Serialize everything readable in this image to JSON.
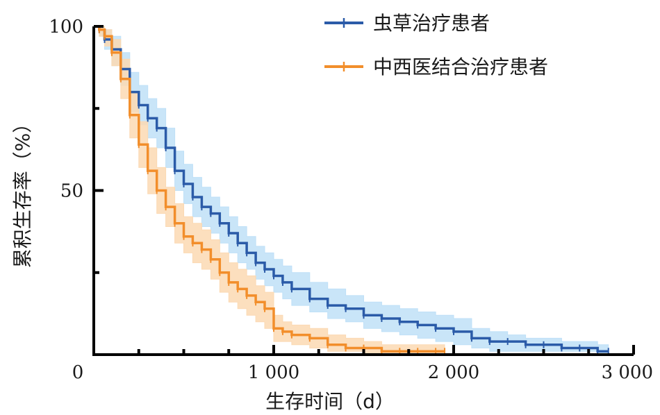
{
  "chart_data": {
    "type": "line",
    "subtype": "kaplan-meier survival curve with confidence bands",
    "xlabel": "生存时间（d）",
    "ylabel": "累积生存率（%）",
    "xlim": [
      0,
      3000
    ],
    "ylim": [
      0,
      100
    ],
    "x_ticks": [
      {
        "value": 0,
        "label": "0"
      },
      {
        "value": 1000,
        "label": "1 000"
      },
      {
        "value": 2000,
        "label": "2 000"
      },
      {
        "value": 3000,
        "label": "3 000"
      }
    ],
    "y_ticks": [
      {
        "value": 50,
        "label": "50"
      },
      {
        "value": 100,
        "label": "100"
      }
    ],
    "x_minor_ticks": [
      250,
      500,
      750,
      1250,
      1500,
      1750,
      2250,
      2500,
      2750
    ],
    "y_minor_ticks": [
      25,
      75
    ],
    "legend_position": "top-right",
    "series": [
      {
        "name": "虫草治疗患者",
        "color": "#2b5ba8",
        "band_color": "#bfe0f7",
        "x": [
          0,
          30,
          60,
          100,
          150,
          200,
          250,
          300,
          350,
          400,
          450,
          500,
          550,
          600,
          650,
          700,
          750,
          800,
          850,
          900,
          950,
          1000,
          1050,
          1100,
          1200,
          1300,
          1400,
          1500,
          1600,
          1700,
          1800,
          1900,
          2000,
          2100,
          2200,
          2300,
          2400,
          2500,
          2600,
          2700,
          2800,
          2860
        ],
        "y": [
          100,
          99,
          96,
          93,
          87,
          80,
          76,
          72,
          69,
          63,
          56,
          52,
          48,
          45,
          43,
          40,
          37,
          34,
          31,
          28,
          26,
          24,
          22,
          20,
          17,
          15,
          14,
          12,
          11,
          10,
          9,
          8,
          7,
          5,
          4,
          4,
          3,
          3,
          2,
          2,
          1,
          1
        ],
        "ci_upper": [
          100,
          100,
          99,
          97,
          92,
          86,
          82,
          78,
          75,
          69,
          62,
          58,
          54,
          51,
          48,
          45,
          42,
          39,
          36,
          33,
          31,
          29,
          27,
          25,
          22,
          20,
          18,
          16,
          15,
          14,
          13,
          12,
          11,
          8,
          7,
          6,
          5,
          5,
          4,
          4,
          3,
          3
        ],
        "ci_lower": [
          100,
          97,
          93,
          88,
          82,
          74,
          70,
          66,
          63,
          57,
          50,
          46,
          42,
          39,
          37,
          34,
          31,
          28,
          26,
          23,
          21,
          19,
          17,
          15,
          13,
          11,
          10,
          8,
          7,
          6,
          5,
          4,
          3,
          2,
          1,
          1,
          1,
          1,
          1,
          1,
          0,
          0
        ]
      },
      {
        "name": "中西医结合治疗患者",
        "color": "#f28e2b",
        "band_color": "#fbd9b3",
        "x": [
          0,
          30,
          60,
          100,
          150,
          200,
          250,
          300,
          350,
          400,
          450,
          500,
          550,
          600,
          650,
          700,
          750,
          800,
          850,
          900,
          950,
          1000,
          1050,
          1100,
          1200,
          1300,
          1400,
          1500,
          1600,
          1700,
          1800,
          1900,
          1950
        ],
        "y": [
          100,
          99,
          97,
          92,
          84,
          73,
          64,
          56,
          50,
          45,
          40,
          36,
          34,
          32,
          29,
          25,
          22,
          20,
          18,
          16,
          14,
          8,
          7,
          6,
          5,
          3,
          2,
          2,
          1,
          1,
          1,
          1,
          1
        ],
        "ci_upper": [
          100,
          100,
          99,
          96,
          90,
          80,
          71,
          63,
          57,
          51,
          46,
          42,
          40,
          38,
          35,
          31,
          28,
          26,
          24,
          21,
          19,
          12,
          10,
          9,
          8,
          6,
          5,
          4,
          3,
          3,
          3,
          3,
          3
        ],
        "ci_lower": [
          100,
          97,
          94,
          88,
          78,
          66,
          57,
          49,
          43,
          39,
          34,
          31,
          28,
          26,
          23,
          19,
          16,
          14,
          12,
          10,
          8,
          4,
          4,
          3,
          2,
          1,
          1,
          0,
          0,
          0,
          0,
          0,
          0
        ]
      }
    ]
  }
}
